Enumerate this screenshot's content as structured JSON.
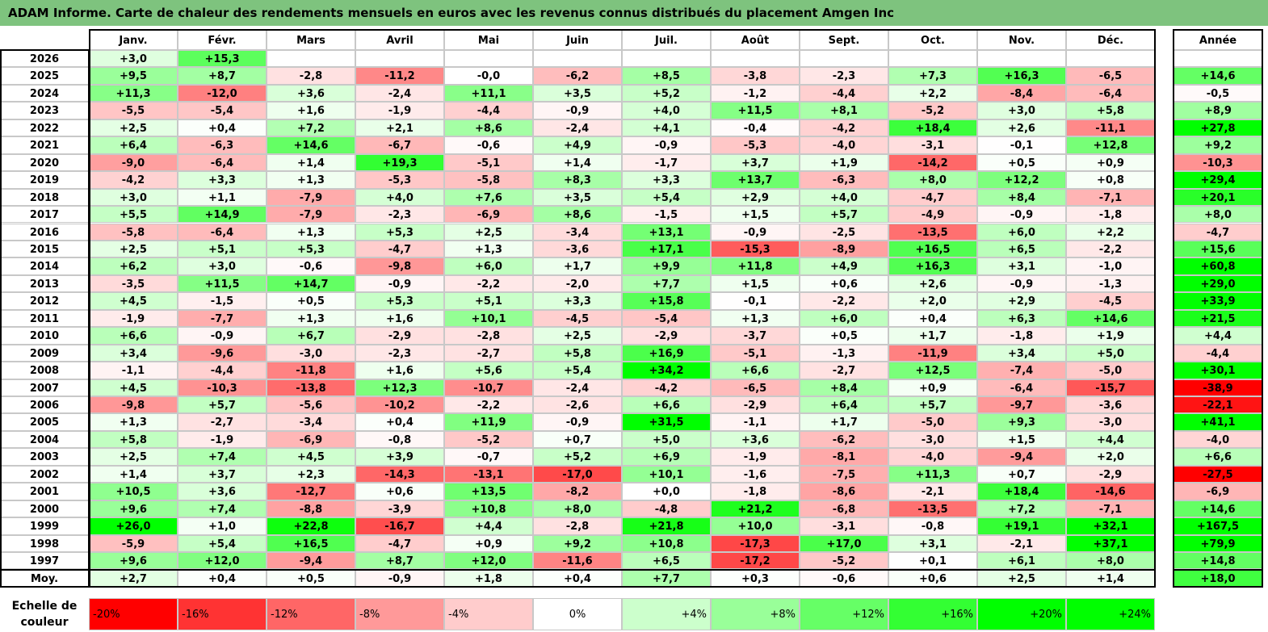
{
  "title": "ADAM Informe. Carte de chaleur des rendements mensuels en euros avec les revenus connus distribués du placement Amgen Inc",
  "chart_data": {
    "type": "heatmap",
    "months": [
      "Janv.",
      "Févr.",
      "Mars",
      "Avril",
      "Mai",
      "Juin",
      "Juil.",
      "Août",
      "Sept.",
      "Oct.",
      "Nov.",
      "Déc."
    ],
    "year_header": "Année",
    "rows": [
      {
        "year": "2026",
        "months": [
          3.0,
          15.3,
          null,
          null,
          null,
          null,
          null,
          null,
          null,
          null,
          null,
          null
        ],
        "annual": null
      },
      {
        "year": "2025",
        "months": [
          9.5,
          8.7,
          -2.8,
          -11.2,
          -0.0,
          -6.2,
          8.5,
          -3.8,
          -2.3,
          7.3,
          16.3,
          -6.5
        ],
        "annual": 14.6
      },
      {
        "year": "2024",
        "months": [
          11.3,
          -12.0,
          3.6,
          -2.4,
          11.1,
          3.5,
          5.2,
          -1.2,
          -4.4,
          2.2,
          -8.4,
          -6.4
        ],
        "annual": -0.5
      },
      {
        "year": "2023",
        "months": [
          -5.5,
          -5.4,
          1.6,
          -1.9,
          -4.4,
          -0.9,
          4.0,
          11.5,
          8.1,
          -5.2,
          3.0,
          5.8
        ],
        "annual": 8.9
      },
      {
        "year": "2022",
        "months": [
          2.5,
          0.4,
          7.2,
          2.1,
          8.6,
          -2.4,
          4.1,
          -0.4,
          -4.2,
          18.4,
          2.6,
          -11.1
        ],
        "annual": 27.8
      },
      {
        "year": "2021",
        "months": [
          6.4,
          -6.3,
          14.6,
          -6.7,
          -0.6,
          4.9,
          -0.9,
          -5.3,
          -4.0,
          -3.1,
          -0.1,
          12.8
        ],
        "annual": 9.2
      },
      {
        "year": "2020",
        "months": [
          -9.0,
          -6.4,
          1.4,
          19.3,
          -5.1,
          1.4,
          -1.7,
          3.7,
          1.9,
          -14.2,
          0.5,
          0.9
        ],
        "annual": -10.3
      },
      {
        "year": "2019",
        "months": [
          -4.2,
          3.3,
          1.3,
          -5.3,
          -5.8,
          8.3,
          3.3,
          13.7,
          -6.3,
          8.0,
          12.2,
          0.8
        ],
        "annual": 29.4
      },
      {
        "year": "2018",
        "months": [
          3.0,
          1.1,
          -7.9,
          4.0,
          7.6,
          3.5,
          5.4,
          2.9,
          4.0,
          -4.7,
          8.4,
          -7.1
        ],
        "annual": 20.1
      },
      {
        "year": "2017",
        "months": [
          5.5,
          14.9,
          -7.9,
          -2.3,
          -6.9,
          8.6,
          -1.5,
          1.5,
          5.7,
          -4.9,
          -0.9,
          -1.8
        ],
        "annual": 8.0
      },
      {
        "year": "2016",
        "months": [
          -5.8,
          -6.4,
          1.3,
          5.3,
          2.5,
          -3.4,
          13.1,
          -0.9,
          -2.5,
          -13.5,
          6.0,
          2.2
        ],
        "annual": -4.7
      },
      {
        "year": "2015",
        "months": [
          2.5,
          5.1,
          5.3,
          -4.7,
          1.3,
          -3.6,
          17.1,
          -15.3,
          -8.9,
          16.5,
          6.5,
          -2.2
        ],
        "annual": 15.6
      },
      {
        "year": "2014",
        "months": [
          6.2,
          3.0,
          -0.6,
          -9.8,
          6.0,
          1.7,
          9.9,
          11.8,
          4.9,
          16.3,
          3.1,
          -1.0
        ],
        "annual": 60.8
      },
      {
        "year": "2013",
        "months": [
          -3.5,
          11.5,
          14.7,
          -0.9,
          -2.2,
          -2.0,
          7.7,
          1.5,
          0.6,
          2.6,
          -0.9,
          -1.3
        ],
        "annual": 29.0
      },
      {
        "year": "2012",
        "months": [
          4.5,
          -1.5,
          0.5,
          5.3,
          5.1,
          3.3,
          15.8,
          -0.1,
          -2.2,
          2.0,
          2.9,
          -4.5
        ],
        "annual": 33.9
      },
      {
        "year": "2011",
        "months": [
          -1.9,
          -7.7,
          1.3,
          1.6,
          10.1,
          -4.5,
          -5.4,
          1.3,
          6.0,
          0.4,
          6.3,
          14.6
        ],
        "annual": 21.5
      },
      {
        "year": "2010",
        "months": [
          6.6,
          -0.9,
          6.7,
          -2.9,
          -2.8,
          2.5,
          -2.9,
          -3.7,
          0.5,
          1.7,
          -1.8,
          1.9
        ],
        "annual": 4.4
      },
      {
        "year": "2009",
        "months": [
          3.4,
          -9.6,
          -3.0,
          -2.3,
          -2.7,
          5.8,
          16.9,
          -5.1,
          -1.3,
          -11.9,
          3.4,
          5.0
        ],
        "annual": -4.4
      },
      {
        "year": "2008",
        "months": [
          -1.1,
          -4.4,
          -11.8,
          1.6,
          5.6,
          5.4,
          34.2,
          6.6,
          -2.7,
          12.5,
          -7.4,
          -5.0
        ],
        "annual": 30.1
      },
      {
        "year": "2007",
        "months": [
          4.5,
          -10.3,
          -13.8,
          12.3,
          -10.7,
          -2.4,
          -4.2,
          -6.5,
          8.4,
          0.9,
          -6.4,
          -15.7
        ],
        "annual": -38.9
      },
      {
        "year": "2006",
        "months": [
          -9.8,
          5.7,
          -5.6,
          -10.2,
          -2.2,
          -2.6,
          6.6,
          -2.9,
          6.4,
          5.7,
          -9.7,
          -3.6
        ],
        "annual": -22.1
      },
      {
        "year": "2005",
        "months": [
          1.3,
          -2.7,
          -3.4,
          0.4,
          11.9,
          -0.9,
          31.5,
          -1.1,
          1.7,
          -5.0,
          9.3,
          -3.0
        ],
        "annual": 41.1
      },
      {
        "year": "2004",
        "months": [
          5.8,
          -1.9,
          -6.9,
          -0.8,
          -5.2,
          0.7,
          5.0,
          3.6,
          -6.2,
          -3.0,
          1.5,
          4.4
        ],
        "annual": -4.0
      },
      {
        "year": "2003",
        "months": [
          2.5,
          7.4,
          4.5,
          3.9,
          -0.7,
          5.2,
          6.9,
          -1.9,
          -8.1,
          -4.0,
          -9.4,
          2.0
        ],
        "annual": 6.6
      },
      {
        "year": "2002",
        "months": [
          1.4,
          3.7,
          2.3,
          -14.3,
          -13.1,
          -17.0,
          10.1,
          -1.6,
          -7.5,
          11.3,
          0.7,
          -2.9
        ],
        "annual": -27.5
      },
      {
        "year": "2001",
        "months": [
          10.5,
          3.6,
          -12.7,
          0.6,
          13.5,
          -8.2,
          0.0,
          -1.8,
          -8.6,
          -2.1,
          18.4,
          -14.6
        ],
        "annual": -6.9
      },
      {
        "year": "2000",
        "months": [
          9.6,
          7.4,
          -8.8,
          -3.9,
          10.8,
          8.0,
          -4.8,
          21.2,
          -6.8,
          -13.5,
          7.2,
          -7.1
        ],
        "annual": 14.6
      },
      {
        "year": "1999",
        "months": [
          26.0,
          1.0,
          22.8,
          -16.7,
          4.4,
          -2.8,
          21.8,
          10.0,
          -3.1,
          -0.8,
          19.1,
          32.1
        ],
        "annual": 167.5
      },
      {
        "year": "1998",
        "months": [
          -5.9,
          5.4,
          16.5,
          -4.7,
          0.9,
          9.2,
          10.8,
          -17.3,
          17.0,
          3.1,
          -2.1,
          37.1
        ],
        "annual": 79.9
      },
      {
        "year": "1997",
        "months": [
          9.6,
          12.0,
          -9.4,
          8.7,
          12.0,
          -11.6,
          6.5,
          -17.2,
          -5.2,
          0.1,
          6.1,
          8.0
        ],
        "annual": 14.8
      }
    ],
    "average": {
      "label": "Moy.",
      "months": [
        2.7,
        0.4,
        0.5,
        -0.9,
        1.8,
        0.4,
        7.7,
        0.3,
        -0.6,
        0.6,
        2.5,
        1.4
      ],
      "annual": 18.0
    },
    "legend": {
      "label_line1": "Echelle de",
      "label_line2": "couleur",
      "steps": [
        {
          "label": "-20%",
          "value": -20
        },
        {
          "label": "-16%",
          "value": -16
        },
        {
          "label": "-12%",
          "value": -12
        },
        {
          "label": "-8%",
          "value": -8
        },
        {
          "label": "-4%",
          "value": -4
        },
        {
          "label": "0%",
          "value": 0
        },
        {
          "label": "+4%",
          "value": 4
        },
        {
          "label": "+8%",
          "value": 8
        },
        {
          "label": "+12%",
          "value": 12
        },
        {
          "label": "+16%",
          "value": 16
        },
        {
          "label": "+20%",
          "value": 20
        },
        {
          "label": "+24%",
          "value": 24
        }
      ]
    },
    "color_scale": {
      "negative": "#ff0000",
      "neutral": "#ffffff",
      "positive": "#00ff00"
    }
  }
}
